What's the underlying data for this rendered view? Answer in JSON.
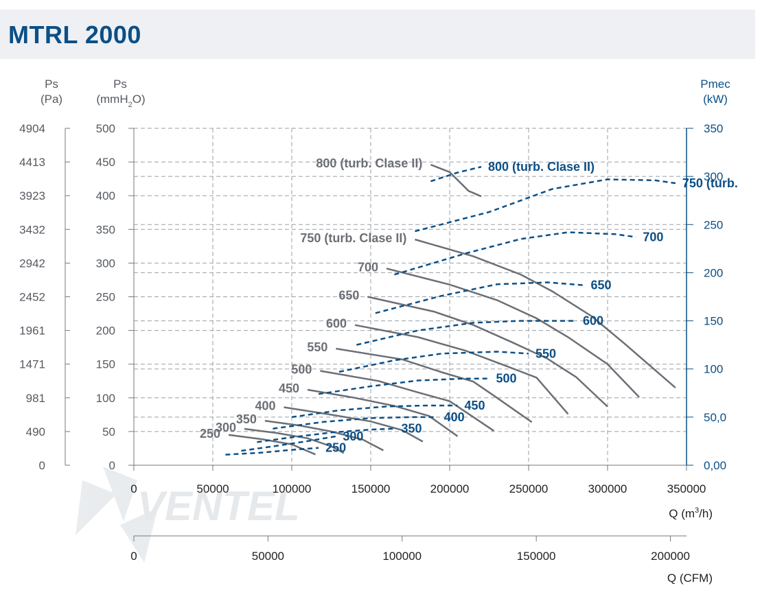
{
  "header": {
    "title": "MTRL 2000"
  },
  "colors": {
    "title": "#0b4f86",
    "pressure_curves": "#6b6f75",
    "power_curves": "#0b4f86",
    "axis_text_left": "#555a60",
    "grid": "#9a9ea3",
    "watermark": "#c9ced4"
  },
  "watermark": "VENTEL",
  "chart_data": {
    "type": "line",
    "axes": {
      "ps_pa": {
        "label_line1": "Ps",
        "label_line2": "(Pa)",
        "ticks": [
          "4904",
          "4413",
          "3923",
          "3432",
          "2942",
          "2452",
          "1961",
          "1471",
          "981",
          "490",
          "0"
        ]
      },
      "ps_mmh2o": {
        "label_line1": "Ps",
        "label_line2_a": "(mmH",
        "label_line2_sub": "2",
        "label_line2_b": "O)",
        "ticks": [
          "500",
          "450",
          "400",
          "350",
          "300",
          "250",
          "200",
          "150",
          "100",
          "50",
          "0"
        ],
        "range": [
          0,
          500
        ]
      },
      "pmec_kw": {
        "label_line1": "Pmec",
        "label_line2": "(kW)",
        "ticks": [
          "350",
          "300",
          "250",
          "200",
          "150",
          "100",
          "50,0",
          "0,00"
        ],
        "range": [
          0,
          350
        ]
      },
      "q_m3h": {
        "label_a": "Q (m",
        "label_sup": "3",
        "label_b": "/h)",
        "ticks": [
          "0",
          "50000",
          "100000",
          "150000",
          "200000",
          "250000",
          "300000",
          "350000"
        ],
        "range": [
          0,
          350000
        ]
      },
      "q_cfm": {
        "label": "Q (CFM)",
        "ticks": [
          "0",
          "50000",
          "100000",
          "150000",
          "200000"
        ],
        "tick_values": [
          0,
          50000,
          100000,
          150000,
          200000
        ]
      }
    },
    "grid": true,
    "pressure_series": [
      {
        "name": "250",
        "points": [
          [
            60000,
            45
          ],
          [
            80000,
            39
          ],
          [
            100000,
            31
          ],
          [
            115000,
            16
          ]
        ]
      },
      {
        "name": "300",
        "points": [
          [
            70000,
            54
          ],
          [
            90000,
            48
          ],
          [
            110000,
            40
          ],
          [
            125000,
            28
          ],
          [
            133000,
            18
          ]
        ]
      },
      {
        "name": "350",
        "points": [
          [
            83000,
            66
          ],
          [
            105000,
            59
          ],
          [
            125000,
            50
          ],
          [
            145000,
            38
          ],
          [
            158000,
            22
          ]
        ]
      },
      {
        "name": "400",
        "points": [
          [
            95000,
            86
          ],
          [
            125000,
            75
          ],
          [
            150000,
            65
          ],
          [
            170000,
            52
          ],
          [
            183000,
            35
          ]
        ]
      },
      {
        "name": "450",
        "points": [
          [
            110000,
            112
          ],
          [
            140000,
            100
          ],
          [
            165000,
            88
          ],
          [
            187000,
            73
          ],
          [
            205000,
            43
          ]
        ]
      },
      {
        "name": "500",
        "points": [
          [
            118000,
            140
          ],
          [
            155000,
            125
          ],
          [
            180000,
            108
          ],
          [
            200000,
            95
          ],
          [
            228000,
            51
          ]
        ]
      },
      {
        "name": "550",
        "points": [
          [
            128000,
            173
          ],
          [
            170000,
            157
          ],
          [
            195000,
            138
          ],
          [
            215000,
            124
          ],
          [
            230000,
            100
          ],
          [
            252000,
            64
          ]
        ]
      },
      {
        "name": "600",
        "points": [
          [
            140000,
            208
          ],
          [
            180000,
            190
          ],
          [
            210000,
            170
          ],
          [
            235000,
            148
          ],
          [
            255000,
            130
          ],
          [
            275000,
            76
          ]
        ]
      },
      {
        "name": "650",
        "points": [
          [
            148000,
            250
          ],
          [
            190000,
            228
          ],
          [
            215000,
            208
          ],
          [
            240000,
            182
          ],
          [
            262000,
            158
          ],
          [
            280000,
            131
          ],
          [
            300000,
            87
          ]
        ]
      },
      {
        "name": "700",
        "points": [
          [
            160000,
            292
          ],
          [
            200000,
            268
          ],
          [
            230000,
            245
          ],
          [
            255000,
            218
          ],
          [
            275000,
            190
          ],
          [
            300000,
            150
          ],
          [
            320000,
            101
          ]
        ]
      },
      {
        "name": "750 (turb. Clase II)",
        "points": [
          [
            178000,
            335
          ],
          [
            215000,
            310
          ],
          [
            245000,
            283
          ],
          [
            265000,
            258
          ],
          [
            290000,
            221
          ],
          [
            310000,
            182
          ],
          [
            343000,
            115
          ]
        ]
      },
      {
        "name": "800 (turb. Clase II)",
        "points": [
          [
            188000,
            446
          ],
          [
            200000,
            435
          ],
          [
            212000,
            407
          ],
          [
            220000,
            399
          ]
        ]
      }
    ],
    "power_series": [
      {
        "name": "250",
        "points": [
          [
            58000,
            11
          ],
          [
            80000,
            13
          ],
          [
            100000,
            16
          ],
          [
            117000,
            18
          ]
        ]
      },
      {
        "name": "300",
        "points": [
          [
            68000,
            15
          ],
          [
            90000,
            20
          ],
          [
            110000,
            25
          ],
          [
            128000,
            30
          ]
        ]
      },
      {
        "name": "350",
        "points": [
          [
            78000,
            24
          ],
          [
            100000,
            29
          ],
          [
            125000,
            34
          ],
          [
            150000,
            37
          ],
          [
            165000,
            38
          ]
        ]
      },
      {
        "name": "400",
        "points": [
          [
            88000,
            38
          ],
          [
            120000,
            45
          ],
          [
            150000,
            49
          ],
          [
            175000,
            50
          ],
          [
            192000,
            50
          ]
        ]
      },
      {
        "name": "450",
        "points": [
          [
            100000,
            50
          ],
          [
            130000,
            57
          ],
          [
            160000,
            61
          ],
          [
            185000,
            62
          ],
          [
            205000,
            62
          ]
        ]
      },
      {
        "name": "500",
        "points": [
          [
            117000,
            74
          ],
          [
            150000,
            82
          ],
          [
            180000,
            88
          ],
          [
            210000,
            90
          ],
          [
            225000,
            90
          ]
        ]
      },
      {
        "name": "550",
        "points": [
          [
            130000,
            97
          ],
          [
            165000,
            109
          ],
          [
            195000,
            116
          ],
          [
            230000,
            118
          ],
          [
            250000,
            116
          ]
        ]
      },
      {
        "name": "600",
        "points": [
          [
            141000,
            125
          ],
          [
            180000,
            140
          ],
          [
            215000,
            148
          ],
          [
            245000,
            150
          ],
          [
            270000,
            150
          ],
          [
            280000,
            150
          ]
        ]
      },
      {
        "name": "650",
        "points": [
          [
            153000,
            158
          ],
          [
            195000,
            176
          ],
          [
            230000,
            188
          ],
          [
            262000,
            190
          ],
          [
            285000,
            187
          ]
        ]
      },
      {
        "name": "700",
        "points": [
          [
            165000,
            198
          ],
          [
            210000,
            220
          ],
          [
            245000,
            235
          ],
          [
            275000,
            242
          ],
          [
            305000,
            240
          ],
          [
            318000,
            237
          ]
        ]
      },
      {
        "name": "750 (turb.",
        "points": [
          [
            178000,
            243
          ],
          [
            225000,
            263
          ],
          [
            265000,
            287
          ],
          [
            300000,
            297
          ],
          [
            330000,
            296
          ],
          [
            343000,
            293
          ]
        ]
      },
      {
        "name": "800 (turb. Clase II)",
        "points": [
          [
            188000,
            295
          ],
          [
            205000,
            304
          ],
          [
            220000,
            310
          ]
        ]
      }
    ],
    "pressure_labels": [
      "800 (turb. Clase II)",
      "750 (turb. Clase II)",
      "700",
      "650",
      "600",
      "550",
      "500",
      "450",
      "400",
      "350",
      "300",
      "250"
    ],
    "power_labels": [
      "800 (turb. Clase II)",
      "750 (turb.",
      "700",
      "650",
      "600",
      "550",
      "500",
      "450",
      "400",
      "350",
      "300",
      "250"
    ]
  }
}
